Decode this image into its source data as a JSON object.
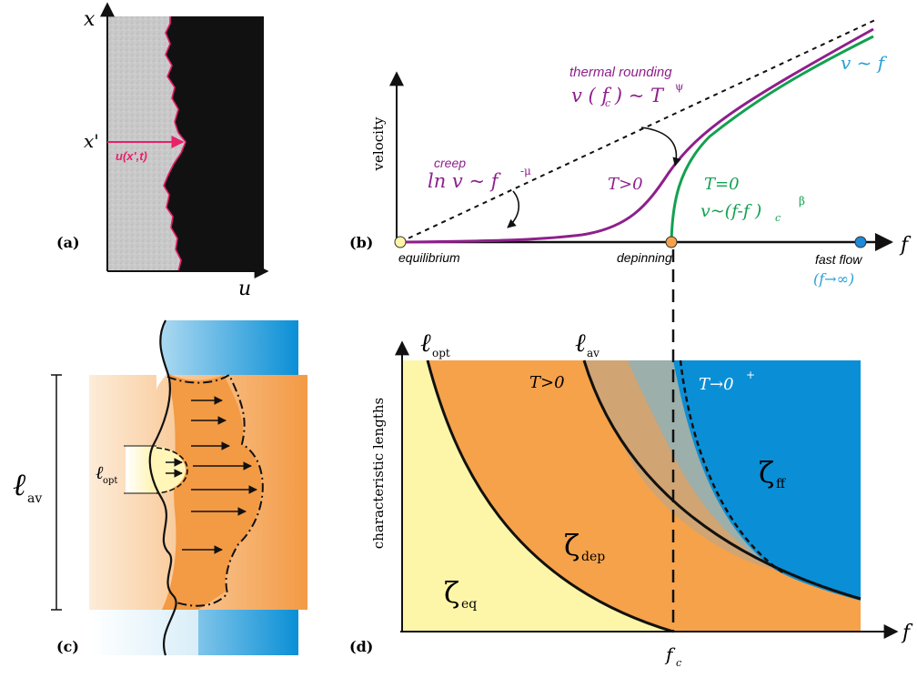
{
  "panel_labels": {
    "a": "(a)",
    "b": "(b)",
    "c": "(c)",
    "d": "(d)"
  },
  "panel_a": {
    "axis_x": "x",
    "axis_u": "u",
    "x_prime": "x'",
    "u_label": "u(x',t)"
  },
  "panel_b": {
    "ylabel": "velocity",
    "xlabel": "f",
    "creep_title": "creep",
    "creep_formula": "ln v ~ f",
    "creep_exponent": "-μ",
    "thermal_title": "thermal rounding",
    "thermal_formula": "v ( f  ) ~ T",
    "thermal_sub": "c",
    "thermal_exponent": "ψ",
    "t_pos": "T>0",
    "t_zero": "T=0",
    "dep_formula": "v~(f-f  )",
    "dep_sub": "c",
    "dep_exponent": "β",
    "v_f": "v ~ f",
    "equilibrium": "equilibrium",
    "depinning": "depinning",
    "fast_flow": "fast flow",
    "fast_flow_limit": "(f→∞)"
  },
  "panel_c": {
    "l_av": "ℓ",
    "l_av_sub": "av",
    "l_opt": "ℓ",
    "l_opt_sub": "opt"
  },
  "panel_d": {
    "ylabel": "characteristic lengths",
    "xlabel": "f",
    "fc": "f",
    "fc_sub": "c",
    "l_opt": "ℓ",
    "l_opt_sub": "opt",
    "l_av": "ℓ",
    "l_av_sub": "av",
    "t_pos": "T>0",
    "t_zero": "T→0",
    "t_zero_sup": "+",
    "zeta": "ζ",
    "zeta_eq_sub": "eq",
    "zeta_dep_sub": "dep",
    "zeta_ff_sub": "ff"
  },
  "colors": {
    "purple": "#8e1f8c",
    "green": "#12a150",
    "cyan": "#2a9fd8",
    "magenta": "#e8206a",
    "orange": "#f6a24a",
    "light_yellow": "#fdf4a8",
    "blue": "#0a8fd6"
  }
}
